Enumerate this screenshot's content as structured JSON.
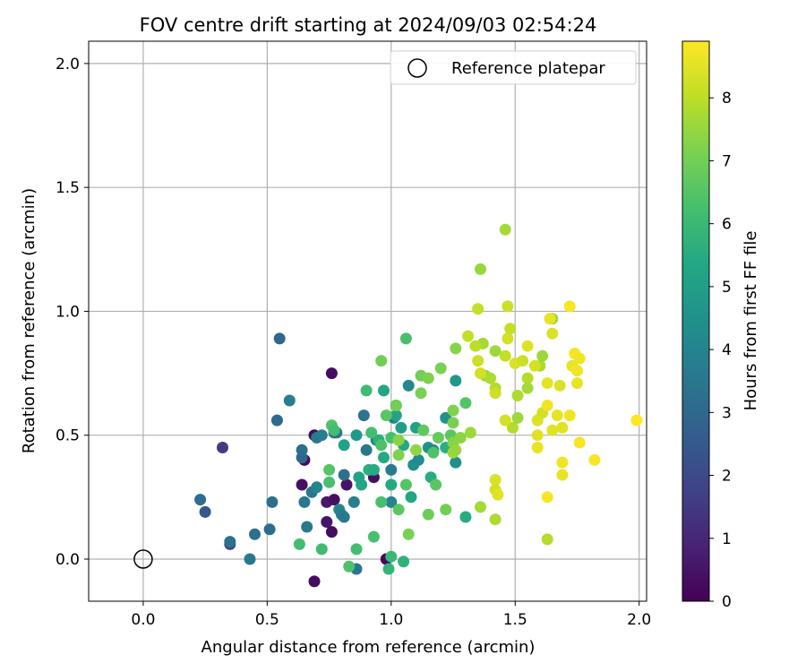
{
  "chart_data": {
    "type": "scatter",
    "title": "FOV centre drift starting at 2024/09/03 02:54:24",
    "xlabel": "Angular distance from reference (arcmin)",
    "ylabel": "Rotation from reference (arcmin)",
    "xlim": [
      -0.22,
      2.03
    ],
    "ylim": [
      -0.17,
      2.09
    ],
    "xticks": [
      "0.0",
      "0.5",
      "1.0",
      "1.5",
      "2.0"
    ],
    "yticks": [
      "0.0",
      "0.5",
      "1.0",
      "1.5",
      "2.0"
    ],
    "grid": true,
    "legend": {
      "placement": "top-right",
      "entries": [
        "Reference platepar"
      ]
    },
    "reference_point": {
      "x": 0.0,
      "y": 0.0,
      "label": "Reference platepar",
      "marker": "open-circle"
    },
    "colorbar": {
      "label": "Hours from first FF file",
      "min": 0,
      "max": 8.9,
      "ticks": [
        "0",
        "1",
        "2",
        "3",
        "4",
        "5",
        "6",
        "7",
        "8"
      ],
      "colormap": "viridis"
    },
    "points": [
      {
        "x": 0.69,
        "y": -0.09,
        "h": 0.3
      },
      {
        "x": 0.98,
        "y": 0.0,
        "h": 0.2
      },
      {
        "x": 0.93,
        "y": 0.33,
        "h": 0.4
      },
      {
        "x": 0.74,
        "y": 0.23,
        "h": 0.6
      },
      {
        "x": 0.77,
        "y": 0.24,
        "h": 0.4
      },
      {
        "x": 0.74,
        "y": 0.15,
        "h": 0.5
      },
      {
        "x": 0.76,
        "y": 0.11,
        "h": 0.3
      },
      {
        "x": 0.65,
        "y": 0.4,
        "h": 0.2
      },
      {
        "x": 0.69,
        "y": 0.5,
        "h": 0.3
      },
      {
        "x": 0.76,
        "y": 0.75,
        "h": 0.3
      },
      {
        "x": 0.64,
        "y": 0.3,
        "h": 0.4
      },
      {
        "x": 0.82,
        "y": 0.3,
        "h": 0.5
      },
      {
        "x": 0.32,
        "y": 0.45,
        "h": 1.6
      },
      {
        "x": 0.35,
        "y": 0.06,
        "h": 1.8
      },
      {
        "x": 0.25,
        "y": 0.19,
        "h": 2.4
      },
      {
        "x": 0.23,
        "y": 0.24,
        "h": 3.2
      },
      {
        "x": 0.35,
        "y": 0.07,
        "h": 3.3
      },
      {
        "x": 0.43,
        "y": 0.0,
        "h": 3.6
      },
      {
        "x": 0.45,
        "y": 0.1,
        "h": 3.3
      },
      {
        "x": 0.51,
        "y": 0.12,
        "h": 3.2
      },
      {
        "x": 0.52,
        "y": 0.23,
        "h": 3.3
      },
      {
        "x": 0.54,
        "y": 0.56,
        "h": 3.1
      },
      {
        "x": 0.55,
        "y": 0.89,
        "h": 3.0
      },
      {
        "x": 0.59,
        "y": 0.64,
        "h": 3.8
      },
      {
        "x": 0.64,
        "y": 0.41,
        "h": 3.0
      },
      {
        "x": 0.64,
        "y": 0.44,
        "h": 3.2
      },
      {
        "x": 0.65,
        "y": 0.23,
        "h": 3.5
      },
      {
        "x": 0.66,
        "y": 0.13,
        "h": 3.6
      },
      {
        "x": 0.68,
        "y": 0.27,
        "h": 3.5
      },
      {
        "x": 0.7,
        "y": 0.49,
        "h": 3.6
      },
      {
        "x": 0.7,
        "y": 0.29,
        "h": 4.0
      },
      {
        "x": 0.72,
        "y": 0.5,
        "h": 3.8
      },
      {
        "x": 0.77,
        "y": 0.51,
        "h": 3.2
      },
      {
        "x": 0.78,
        "y": 0.51,
        "h": 3.5
      },
      {
        "x": 0.79,
        "y": 0.2,
        "h": 4.0
      },
      {
        "x": 0.8,
        "y": 0.18,
        "h": 3.8
      },
      {
        "x": 0.81,
        "y": 0.34,
        "h": 3.3
      },
      {
        "x": 0.81,
        "y": 0.17,
        "h": 3.6
      },
      {
        "x": 0.85,
        "y": 0.23,
        "h": 3.9
      },
      {
        "x": 0.86,
        "y": -0.04,
        "h": 3.5
      },
      {
        "x": 0.89,
        "y": 0.58,
        "h": 3.4
      },
      {
        "x": 0.9,
        "y": 0.44,
        "h": 3.6
      },
      {
        "x": 0.94,
        "y": 0.48,
        "h": 3.9
      },
      {
        "x": 1.01,
        "y": 0.57,
        "h": 3.8
      },
      {
        "x": 1.02,
        "y": 0.62,
        "h": 3.1
      },
      {
        "x": 1.0,
        "y": 0.36,
        "h": 3.7
      },
      {
        "x": 1.0,
        "y": 0.23,
        "h": 4.0
      },
      {
        "x": 1.07,
        "y": 0.7,
        "h": 4.1
      },
      {
        "x": 1.09,
        "y": 0.38,
        "h": 4.4
      },
      {
        "x": 1.11,
        "y": 0.4,
        "h": 4.3
      },
      {
        "x": 1.15,
        "y": 0.45,
        "h": 4.6
      },
      {
        "x": 1.17,
        "y": 0.44,
        "h": 4.2
      },
      {
        "x": 1.22,
        "y": 0.57,
        "h": 4.5
      },
      {
        "x": 1.26,
        "y": 0.39,
        "h": 4.4
      },
      {
        "x": 1.26,
        "y": 0.72,
        "h": 4.7
      },
      {
        "x": 0.86,
        "y": 0.5,
        "h": 4.8
      },
      {
        "x": 0.88,
        "y": 0.3,
        "h": 5.3
      },
      {
        "x": 0.87,
        "y": 0.33,
        "h": 5.2
      },
      {
        "x": 0.81,
        "y": 0.46,
        "h": 5.1
      },
      {
        "x": 0.91,
        "y": 0.36,
        "h": 5.6
      },
      {
        "x": 0.93,
        "y": 0.36,
        "h": 5.5
      },
      {
        "x": 0.95,
        "y": 0.48,
        "h": 5.6
      },
      {
        "x": 0.97,
        "y": 0.41,
        "h": 5.4
      },
      {
        "x": 0.97,
        "y": 0.68,
        "h": 5.3
      },
      {
        "x": 1.02,
        "y": 0.58,
        "h": 5.2
      },
      {
        "x": 1.04,
        "y": 0.53,
        "h": 5.0
      },
      {
        "x": 1.05,
        "y": 0.46,
        "h": 5.4
      },
      {
        "x": 1.08,
        "y": 0.25,
        "h": 5.3
      },
      {
        "x": 1.1,
        "y": 0.53,
        "h": 5.1
      },
      {
        "x": 1.0,
        "y": 0.3,
        "h": 5.4
      },
      {
        "x": 1.16,
        "y": 0.33,
        "h": 5.5
      },
      {
        "x": 1.22,
        "y": 0.45,
        "h": 5.6
      },
      {
        "x": 1.3,
        "y": 0.17,
        "h": 5.5
      },
      {
        "x": 0.99,
        "y": -0.04,
        "h": 5.8
      },
      {
        "x": 1.0,
        "y": 0.01,
        "h": 6.0
      },
      {
        "x": 1.05,
        "y": -0.01,
        "h": 5.7
      },
      {
        "x": 0.63,
        "y": 0.06,
        "h": 6.2
      },
      {
        "x": 0.72,
        "y": 0.04,
        "h": 6.1
      },
      {
        "x": 0.83,
        "y": -0.03,
        "h": 6.4
      },
      {
        "x": 0.86,
        "y": 0.04,
        "h": 6.2
      },
      {
        "x": 0.93,
        "y": 0.09,
        "h": 6.3
      },
      {
        "x": 0.96,
        "y": 0.23,
        "h": 6.3
      },
      {
        "x": 0.75,
        "y": 0.36,
        "h": 6.5
      },
      {
        "x": 0.75,
        "y": 0.31,
        "h": 6.3
      },
      {
        "x": 0.76,
        "y": 0.54,
        "h": 6.4
      },
      {
        "x": 0.77,
        "y": 0.52,
        "h": 6.2
      },
      {
        "x": 0.9,
        "y": 0.68,
        "h": 6.1
      },
      {
        "x": 0.92,
        "y": 0.51,
        "h": 6.2
      },
      {
        "x": 0.96,
        "y": 0.46,
        "h": 6.4
      },
      {
        "x": 0.98,
        "y": 0.58,
        "h": 6.6
      },
      {
        "x": 1.0,
        "y": 0.49,
        "h": 6.3
      },
      {
        "x": 1.03,
        "y": 0.2,
        "h": 6.6
      },
      {
        "x": 1.06,
        "y": 0.3,
        "h": 6.5
      },
      {
        "x": 1.06,
        "y": 0.89,
        "h": 6.3
      },
      {
        "x": 1.13,
        "y": 0.52,
        "h": 6.7
      },
      {
        "x": 1.17,
        "y": 0.43,
        "h": 6.4
      },
      {
        "x": 1.18,
        "y": 0.3,
        "h": 6.6
      },
      {
        "x": 1.19,
        "y": 0.49,
        "h": 6.8
      },
      {
        "x": 1.24,
        "y": 0.5,
        "h": 6.6
      },
      {
        "x": 1.3,
        "y": 0.63,
        "h": 6.5
      },
      {
        "x": 1.15,
        "y": 0.18,
        "h": 6.9
      },
      {
        "x": 1.22,
        "y": 0.2,
        "h": 7.0
      },
      {
        "x": 1.2,
        "y": 0.77,
        "h": 7.1
      },
      {
        "x": 1.25,
        "y": 0.6,
        "h": 7.2
      },
      {
        "x": 1.25,
        "y": 0.55,
        "h": 7.1
      },
      {
        "x": 1.26,
        "y": 0.85,
        "h": 7.3
      },
      {
        "x": 1.12,
        "y": 0.74,
        "h": 7.0
      },
      {
        "x": 1.12,
        "y": 0.67,
        "h": 7.1
      },
      {
        "x": 1.15,
        "y": 0.73,
        "h": 7.2
      },
      {
        "x": 1.02,
        "y": 0.62,
        "h": 7.0
      },
      {
        "x": 1.03,
        "y": 0.42,
        "h": 7.2
      },
      {
        "x": 1.03,
        "y": 0.48,
        "h": 7.3
      },
      {
        "x": 1.07,
        "y": 0.1,
        "h": 7.1
      },
      {
        "x": 0.96,
        "y": 0.8,
        "h": 7.0
      },
      {
        "x": 1.1,
        "y": 0.44,
        "h": 7.4
      },
      {
        "x": 1.25,
        "y": 0.47,
        "h": 7.3
      },
      {
        "x": 1.25,
        "y": 0.43,
        "h": 7.6
      },
      {
        "x": 1.26,
        "y": 0.44,
        "h": 7.5
      },
      {
        "x": 1.28,
        "y": 0.49,
        "h": 7.4
      },
      {
        "x": 1.32,
        "y": 0.51,
        "h": 7.6
      },
      {
        "x": 1.36,
        "y": 0.21,
        "h": 7.7
      },
      {
        "x": 1.42,
        "y": 0.16,
        "h": 7.8
      },
      {
        "x": 1.36,
        "y": 1.17,
        "h": 7.5
      },
      {
        "x": 1.37,
        "y": 0.87,
        "h": 7.7
      },
      {
        "x": 1.38,
        "y": 0.74,
        "h": 7.5
      },
      {
        "x": 1.4,
        "y": 0.73,
        "h": 7.8
      },
      {
        "x": 1.42,
        "y": 0.84,
        "h": 7.6
      },
      {
        "x": 1.42,
        "y": 0.69,
        "h": 7.9
      },
      {
        "x": 1.46,
        "y": 1.33,
        "h": 7.7
      },
      {
        "x": 1.49,
        "y": 0.53,
        "h": 7.9
      },
      {
        "x": 1.51,
        "y": 0.57,
        "h": 7.6
      },
      {
        "x": 1.51,
        "y": 0.66,
        "h": 7.8
      },
      {
        "x": 1.55,
        "y": 0.73,
        "h": 7.9
      },
      {
        "x": 1.55,
        "y": 0.69,
        "h": 7.7
      },
      {
        "x": 1.6,
        "y": 0.78,
        "h": 7.8
      },
      {
        "x": 1.61,
        "y": 0.82,
        "h": 7.6
      },
      {
        "x": 1.63,
        "y": 0.08,
        "h": 7.9
      },
      {
        "x": 1.65,
        "y": 0.97,
        "h": 7.5
      },
      {
        "x": 1.34,
        "y": 0.86,
        "h": 8.0
      },
      {
        "x": 1.35,
        "y": 1.01,
        "h": 8.1
      },
      {
        "x": 1.35,
        "y": 0.8,
        "h": 8.2
      },
      {
        "x": 1.36,
        "y": 0.75,
        "h": 8.3
      },
      {
        "x": 1.31,
        "y": 0.9,
        "h": 8.1
      },
      {
        "x": 1.42,
        "y": 0.32,
        "h": 8.4
      },
      {
        "x": 1.42,
        "y": 0.28,
        "h": 8.3
      },
      {
        "x": 1.43,
        "y": 0.26,
        "h": 8.5
      },
      {
        "x": 1.42,
        "y": 0.67,
        "h": 8.2
      },
      {
        "x": 1.46,
        "y": 0.56,
        "h": 8.3
      },
      {
        "x": 1.46,
        "y": 0.82,
        "h": 8.1
      },
      {
        "x": 1.47,
        "y": 1.02,
        "h": 8.2
      },
      {
        "x": 1.47,
        "y": 0.89,
        "h": 8.3
      },
      {
        "x": 1.48,
        "y": 0.93,
        "h": 8.1
      },
      {
        "x": 1.5,
        "y": 0.79,
        "h": 8.4
      },
      {
        "x": 1.53,
        "y": 0.8,
        "h": 8.2
      },
      {
        "x": 1.55,
        "y": 0.86,
        "h": 8.5
      },
      {
        "x": 1.58,
        "y": 0.78,
        "h": 8.3
      },
      {
        "x": 1.59,
        "y": 0.56,
        "h": 8.4
      },
      {
        "x": 1.59,
        "y": 0.45,
        "h": 8.6
      },
      {
        "x": 1.59,
        "y": 0.5,
        "h": 8.5
      },
      {
        "x": 1.61,
        "y": 0.59,
        "h": 8.3
      },
      {
        "x": 1.63,
        "y": 0.71,
        "h": 8.6
      },
      {
        "x": 1.63,
        "y": 0.62,
        "h": 8.7
      },
      {
        "x": 1.63,
        "y": 0.25,
        "h": 8.8
      },
      {
        "x": 1.64,
        "y": 0.97,
        "h": 8.6
      },
      {
        "x": 1.65,
        "y": 0.52,
        "h": 8.5
      },
      {
        "x": 1.65,
        "y": 0.91,
        "h": 8.4
      },
      {
        "x": 1.67,
        "y": 0.58,
        "h": 8.6
      },
      {
        "x": 1.68,
        "y": 0.7,
        "h": 8.4
      },
      {
        "x": 1.69,
        "y": 0.39,
        "h": 8.7
      },
      {
        "x": 1.69,
        "y": 0.34,
        "h": 8.6
      },
      {
        "x": 1.69,
        "y": 0.53,
        "h": 8.5
      },
      {
        "x": 1.72,
        "y": 1.02,
        "h": 8.8
      },
      {
        "x": 1.72,
        "y": 0.58,
        "h": 8.7
      },
      {
        "x": 1.73,
        "y": 0.78,
        "h": 8.6
      },
      {
        "x": 1.74,
        "y": 0.83,
        "h": 8.8
      },
      {
        "x": 1.75,
        "y": 0.76,
        "h": 8.7
      },
      {
        "x": 1.75,
        "y": 0.71,
        "h": 8.6
      },
      {
        "x": 1.76,
        "y": 0.47,
        "h": 8.8
      },
      {
        "x": 1.76,
        "y": 0.81,
        "h": 8.7
      },
      {
        "x": 1.82,
        "y": 0.4,
        "h": 8.8
      },
      {
        "x": 1.99,
        "y": 0.56,
        "h": 8.9
      }
    ]
  }
}
